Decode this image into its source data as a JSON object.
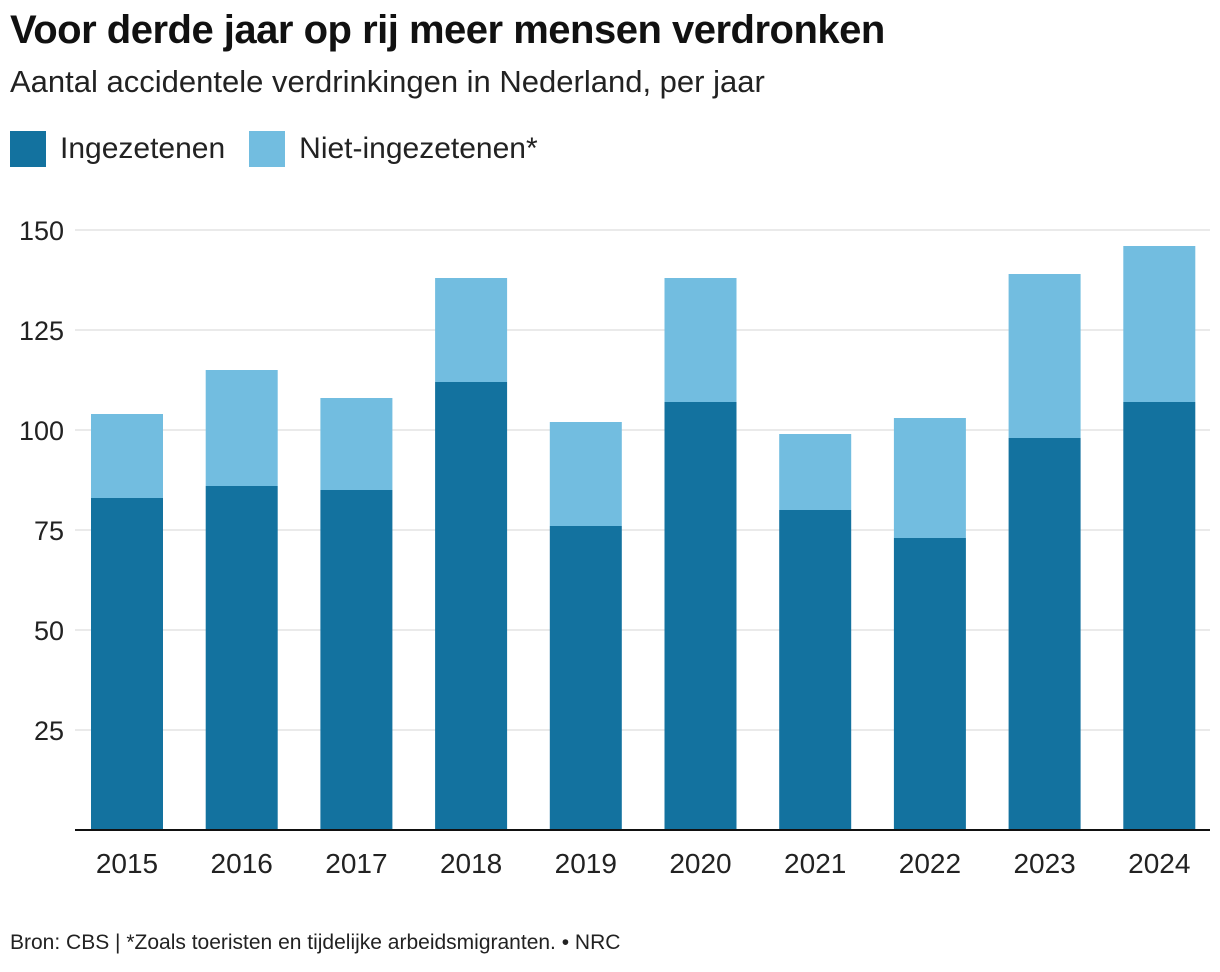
{
  "chart_data": {
    "type": "bar",
    "stacked": true,
    "title": "Voor derde jaar op rij meer mensen verdronken",
    "subtitle": "Aantal accidentele verdrinkingen in Nederland, per jaar",
    "categories": [
      "2015",
      "2016",
      "2017",
      "2018",
      "2019",
      "2020",
      "2021",
      "2022",
      "2023",
      "2024"
    ],
    "series": [
      {
        "name": "Ingezetenen",
        "color": "#13729f",
        "values": [
          83,
          86,
          85,
          112,
          76,
          107,
          80,
          73,
          98,
          107
        ]
      },
      {
        "name": "Niet-ingezetenen*",
        "color": "#72bde0",
        "values": [
          21,
          29,
          23,
          26,
          26,
          31,
          19,
          30,
          41,
          39
        ]
      }
    ],
    "ylim": [
      0,
      150
    ],
    "yticks": [
      25,
      50,
      75,
      100,
      125,
      150
    ],
    "grid": true,
    "legend_position": "top-left",
    "footer": {
      "source": "Bron: CBS",
      "note": "*Zoals toeristen en tijdelijke arbeidsmigranten.",
      "publisher": "NRC"
    }
  },
  "footer_text": "Bron: CBS  |  *Zoals toeristen en tijdelijke arbeidsmigranten.  •  NRC"
}
